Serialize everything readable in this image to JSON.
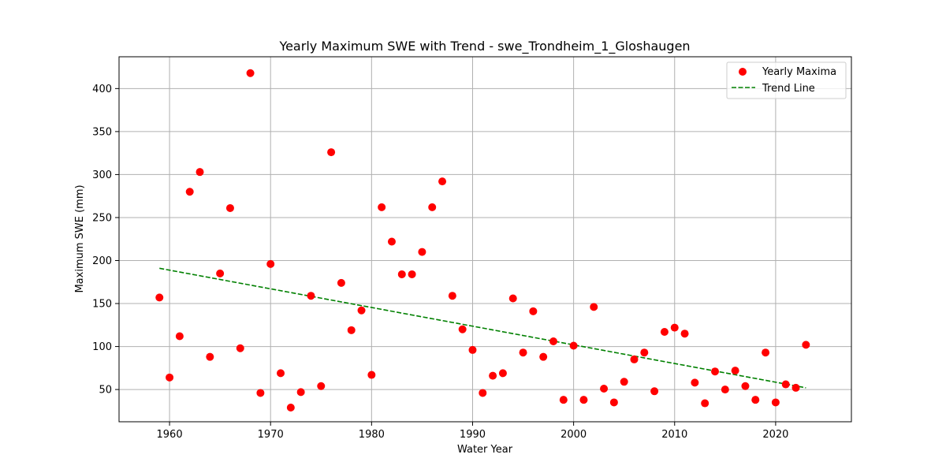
{
  "chart_data": {
    "type": "scatter",
    "title": "Yearly Maximum SWE with Trend - swe_Trondheim_1_Gloshaugen",
    "xlabel": "Water Year",
    "ylabel": "Maximum SWE (mm)",
    "xlim": [
      1955,
      2027.5
    ],
    "ylim": [
      12.5,
      437
    ],
    "xticks": [
      1960,
      1970,
      1980,
      1990,
      2000,
      2010,
      2020
    ],
    "yticks": [
      50,
      100,
      150,
      200,
      250,
      300,
      350,
      400
    ],
    "grid": true,
    "legend_position": "top-right",
    "series": [
      {
        "name": "Yearly Maxima",
        "kind": "scatter",
        "color": "#ff0000",
        "x": [
          1959,
          1960,
          1961,
          1962,
          1963,
          1964,
          1965,
          1966,
          1967,
          1968,
          1969,
          1970,
          1971,
          1972,
          1973,
          1974,
          1975,
          1976,
          1977,
          1978,
          1979,
          1980,
          1981,
          1982,
          1983,
          1984,
          1985,
          1986,
          1987,
          1988,
          1989,
          1990,
          1991,
          1992,
          1993,
          1994,
          1995,
          1996,
          1997,
          1998,
          1999,
          2000,
          2001,
          2002,
          2003,
          2004,
          2005,
          2006,
          2007,
          2008,
          2009,
          2010,
          2011,
          2012,
          2013,
          2014,
          2015,
          2016,
          2017,
          2018,
          2019,
          2020,
          2021,
          2022,
          2023
        ],
        "y": [
          157,
          64,
          112,
          280,
          303,
          88,
          185,
          261,
          98,
          418,
          46,
          196,
          69,
          29,
          47,
          159,
          54,
          326,
          174,
          119,
          142,
          67,
          262,
          222,
          184,
          184,
          210,
          262,
          292,
          159,
          120,
          96,
          46,
          66,
          69,
          156,
          93,
          141,
          88,
          106,
          38,
          101,
          38,
          146,
          51,
          35,
          59,
          85,
          93,
          48,
          117,
          122,
          115,
          58,
          34,
          71,
          50,
          72,
          54,
          38,
          93,
          35,
          56,
          52,
          102
        ]
      },
      {
        "name": "Trend Line",
        "kind": "line",
        "color": "#008000",
        "dash": "dashed",
        "x": [
          1959,
          2023
        ],
        "y": [
          191,
          52
        ]
      }
    ]
  }
}
